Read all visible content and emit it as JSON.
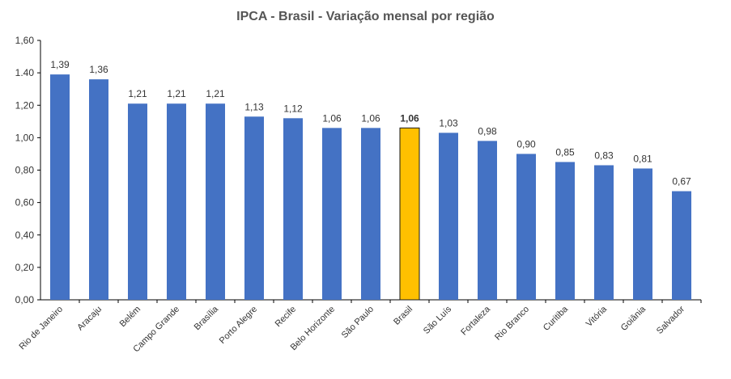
{
  "chart_data": {
    "type": "bar",
    "title": "IPCA - Brasil - Variação mensal por região",
    "xlabel": "",
    "ylabel": "",
    "ylim": [
      0,
      1.6
    ],
    "yticks": [
      0,
      0.2,
      0.4,
      0.6,
      0.8,
      1.0,
      1.2,
      1.4,
      1.6
    ],
    "ytick_labels": [
      "0,00",
      "0,20",
      "0,40",
      "0,60",
      "0,80",
      "1,00",
      "1,20",
      "1.40",
      "1,60"
    ],
    "grid": false,
    "categories": [
      "Rio de Janeiro",
      "Aracaju",
      "Belém",
      "Campo Grande",
      "Brasília",
      "Porto Alegre",
      "Recife",
      "Belo Horizonte",
      "São Paulo",
      "Brasil",
      "São Luís",
      "Fortaleza",
      "Rio Branco",
      "Curitiba",
      "Vitória",
      "Goiânia",
      "Salvador"
    ],
    "values": [
      1.39,
      1.36,
      1.21,
      1.21,
      1.21,
      1.13,
      1.12,
      1.06,
      1.06,
      1.06,
      1.03,
      0.98,
      0.9,
      0.85,
      0.83,
      0.81,
      0.67
    ],
    "data_labels": [
      "1,39",
      "1,36",
      "1,21",
      "1,21",
      "1,21",
      "1,13",
      "1,12",
      "1,06",
      "1,06",
      "1,06",
      "1,03",
      "0,98",
      "0,90",
      "0,85",
      "0,83",
      "0,81",
      "0,67"
    ],
    "highlight_category": "Brasil",
    "colors": {
      "bar": "#4472C4",
      "highlight": "#FFC000",
      "highlight_border": "#1a1a1a",
      "axis": "#000000",
      "text": "#333333",
      "title": "#555555"
    }
  }
}
